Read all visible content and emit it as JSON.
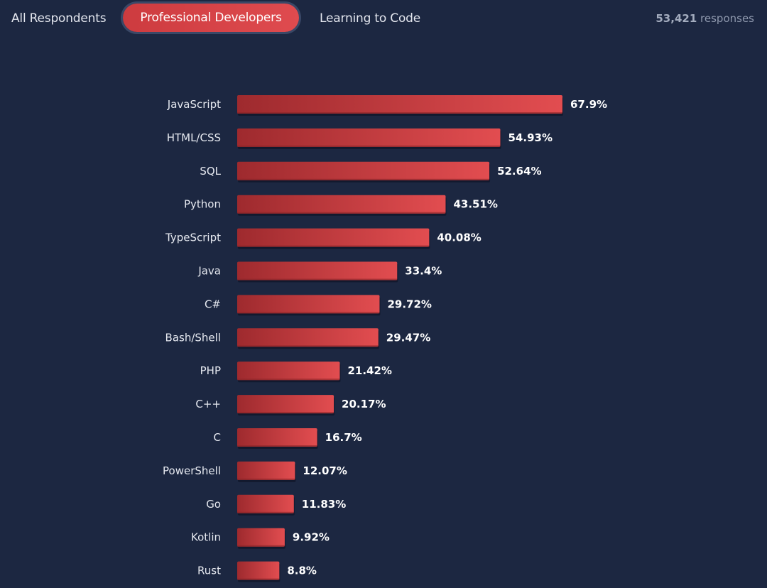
{
  "tabs": [
    {
      "label": "All Respondents",
      "active": false
    },
    {
      "label": "Professional Developers",
      "active": true
    },
    {
      "label": "Learning to Code",
      "active": false
    }
  ],
  "responses": {
    "count": "53,421",
    "suffix": "responses"
  },
  "colors": {
    "background": "#1c2741",
    "bar_start": "#9e2a2e",
    "bar_end": "#e24d50",
    "active_tab": "#d94448"
  },
  "chart_data": {
    "type": "bar",
    "orientation": "horizontal",
    "title": "",
    "xlabel": "",
    "ylabel": "",
    "unit": "%",
    "xlim": [
      0,
      67.9
    ],
    "categories": [
      "JavaScript",
      "HTML/CSS",
      "SQL",
      "Python",
      "TypeScript",
      "Java",
      "C#",
      "Bash/Shell",
      "PHP",
      "C++",
      "C",
      "PowerShell",
      "Go",
      "Kotlin",
      "Rust"
    ],
    "values": [
      67.9,
      54.93,
      52.64,
      43.51,
      40.08,
      33.4,
      29.72,
      29.47,
      21.42,
      20.17,
      16.7,
      12.07,
      11.83,
      9.92,
      8.8
    ],
    "value_labels": [
      "67.9%",
      "54.93%",
      "52.64%",
      "43.51%",
      "40.08%",
      "33.4%",
      "29.72%",
      "29.47%",
      "21.42%",
      "20.17%",
      "16.7%",
      "12.07%",
      "11.83%",
      "9.92%",
      "8.8%"
    ]
  }
}
